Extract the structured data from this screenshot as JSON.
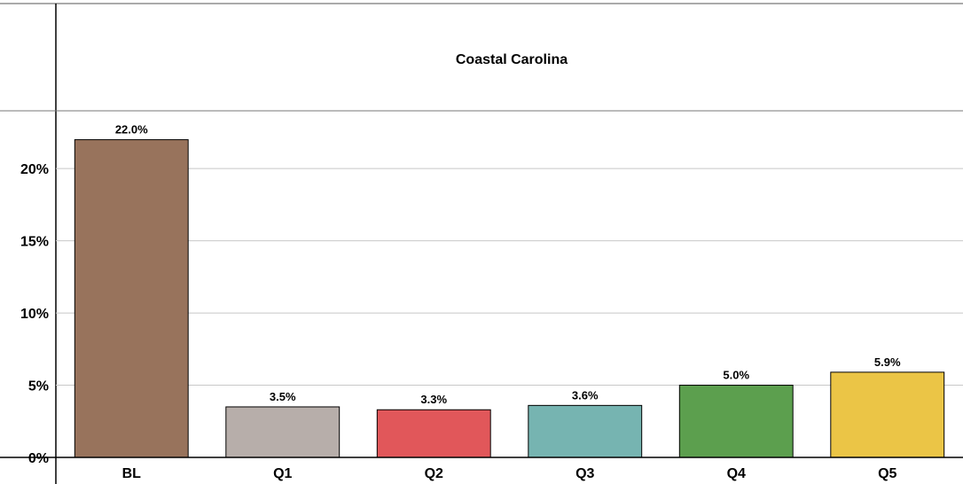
{
  "chart_data": {
    "type": "bar",
    "title": "Coastal Carolina",
    "categories": [
      "BL",
      "Q1",
      "Q2",
      "Q3",
      "Q4",
      "Q5"
    ],
    "values": [
      22.0,
      3.5,
      3.3,
      3.6,
      5.0,
      5.9
    ],
    "data_labels": [
      "22.0%",
      "3.5%",
      "3.3%",
      "3.6%",
      "5.0%",
      "5.9%"
    ],
    "colors": [
      "#98735C",
      "#B7AEAA",
      "#E1575A",
      "#76B4B1",
      "#5C9F4E",
      "#EBC546"
    ],
    "y_ticks": [
      0,
      5,
      10,
      15,
      20
    ],
    "y_tick_labels": [
      "0%",
      "5%",
      "10%",
      "15%",
      "20%"
    ],
    "ylim": [
      0,
      24
    ],
    "grid": true,
    "xlabel": "",
    "ylabel": ""
  }
}
